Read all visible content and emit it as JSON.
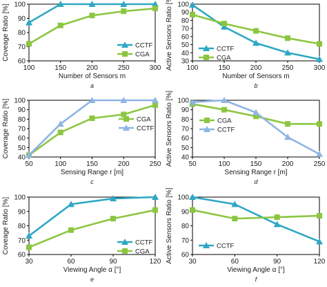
{
  "chart_data": [
    {
      "caption": "a",
      "type": "line",
      "xlabel": "Number of Sensors m",
      "ylabel": "Coveage Ratio [%]",
      "x": [
        100,
        150,
        200,
        250,
        300
      ],
      "xticks": [
        "100",
        "150",
        "200",
        "250",
        "300"
      ],
      "ylim": [
        60,
        100
      ],
      "yticks": [
        "60",
        "70",
        "80",
        "90",
        "100"
      ],
      "legend": "bottom-right",
      "series": [
        {
          "name": "CCTF",
          "values": [
            87,
            100,
            100,
            100,
            100
          ],
          "color": "#2ea7c4",
          "marker": "triangle"
        },
        {
          "name": "CGA",
          "values": [
            72,
            85,
            92,
            95,
            97
          ],
          "color": "#8cc640",
          "marker": "square"
        }
      ]
    },
    {
      "caption": "b",
      "type": "line",
      "xlabel": "Number of Sensors m",
      "ylabel": "Active Sensors Ratio [%]",
      "x": [
        100,
        150,
        200,
        250,
        300
      ],
      "xticks": [
        "100",
        "150",
        "200",
        "250",
        "300"
      ],
      "ylim": [
        30,
        100
      ],
      "yticks": [
        "30",
        "40",
        "50",
        "60",
        "70",
        "80",
        "90",
        "100"
      ],
      "legend": "bottom-left",
      "series": [
        {
          "name": "CCTF",
          "values": [
            99,
            72,
            52,
            40,
            32
          ],
          "color": "#2ea7c4",
          "marker": "triangle"
        },
        {
          "name": "CGA",
          "values": [
            87,
            76,
            67,
            58,
            51
          ],
          "color": "#8cc640",
          "marker": "square"
        }
      ]
    },
    {
      "caption": "c",
      "type": "line",
      "xlabel": "Sensing Range r [m]",
      "ylabel": "Coverage Ratio [%]",
      "x": [
        50,
        100,
        150,
        200,
        250
      ],
      "xticks": [
        "50",
        "100",
        "150",
        "200",
        "250"
      ],
      "ylim": [
        40,
        100
      ],
      "yticks": [
        "40",
        "50",
        "60",
        "70",
        "80",
        "90",
        "100"
      ],
      "legend": "middle-right",
      "series": [
        {
          "name": "CGA",
          "values": [
            42,
            66,
            81,
            85,
            95
          ],
          "color": "#8cc640",
          "marker": "square"
        },
        {
          "name": "CCTF",
          "values": [
            42,
            75,
            100,
            100,
            100
          ],
          "color": "#8eb4e3",
          "marker": "triangle"
        }
      ]
    },
    {
      "caption": "d",
      "type": "line",
      "xlabel": "Sensing Range r [m]",
      "ylabel": "Active Sensors Ratio [%]",
      "x": [
        50,
        100,
        150,
        200,
        250
      ],
      "xticks": [
        "50",
        "100",
        "150",
        "200",
        "250"
      ],
      "ylim": [
        40,
        100
      ],
      "yticks": [
        "40",
        "50",
        "60",
        "70",
        "80",
        "90",
        "100"
      ],
      "legend": "middle-left",
      "series": [
        {
          "name": "CGA",
          "values": [
            96,
            90,
            83,
            75,
            75
          ],
          "color": "#8cc640",
          "marker": "square"
        },
        {
          "name": "CCTF",
          "values": [
            98,
            100,
            87,
            61,
            43
          ],
          "color": "#8eb4e3",
          "marker": "triangle"
        }
      ]
    },
    {
      "caption": "e",
      "type": "line",
      "xlabel": "Viewing Angle α [°]",
      "ylabel": "Coveage Ratio [%]",
      "x": [
        30,
        60,
        90,
        120
      ],
      "xticks": [
        "30",
        "60",
        "90",
        "120"
      ],
      "ylim": [
        60,
        100
      ],
      "yticks": [
        "60",
        "70",
        "80",
        "90",
        "100"
      ],
      "legend": "bottom-right",
      "series": [
        {
          "name": "CCTF",
          "values": [
            73,
            95,
            99,
            100
          ],
          "color": "#2ea7c4",
          "marker": "triangle"
        },
        {
          "name": "CGA",
          "values": [
            65,
            77,
            85,
            91
          ],
          "color": "#8cc640",
          "marker": "square"
        }
      ]
    },
    {
      "caption": "f",
      "type": "line",
      "xlabel": "Viewing Angle α [°]",
      "ylabel": "Active Sensors Ratio [%]",
      "x": [
        30,
        60,
        90,
        120
      ],
      "xticks": [
        "30",
        "60",
        "90",
        "120"
      ],
      "ylim": [
        60,
        100
      ],
      "yticks": [
        "60",
        "70",
        "80",
        "90",
        "100"
      ],
      "legend": "bottom-left",
      "series": [
        {
          "name": "CCTF",
          "values": [
            100,
            95,
            81,
            69
          ],
          "color": "#2ea7c4",
          "marker": "triangle"
        },
        {
          "name": "CGA",
          "values": [
            91,
            85,
            86,
            87
          ],
          "color": "#8cc640",
          "marker": "square",
          "legend": false
        }
      ]
    }
  ]
}
